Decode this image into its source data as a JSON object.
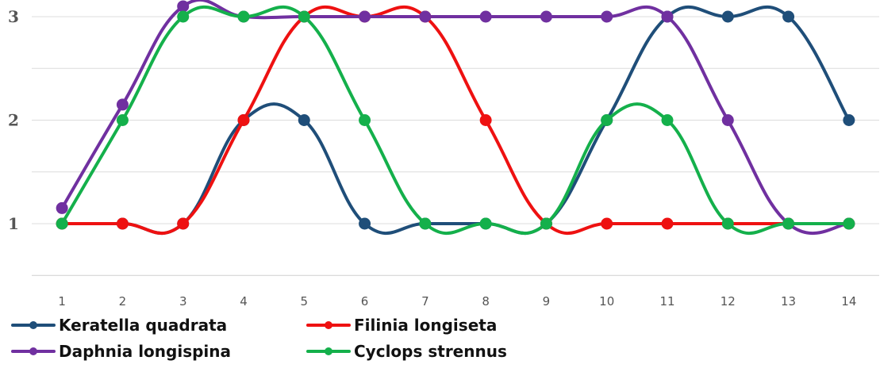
{
  "chart_data": {
    "type": "line",
    "title": "",
    "xlabel": "",
    "ylabel": "",
    "categories": [
      "1",
      "2",
      "3",
      "4",
      "5",
      "6",
      "7",
      "8",
      "9",
      "10",
      "11",
      "12",
      "13",
      "14"
    ],
    "y_ticks": [
      "1",
      "2",
      "3"
    ],
    "ylim": [
      0.5,
      3
    ],
    "grid": true,
    "smooth": true,
    "legend_position": "bottom",
    "series": [
      {
        "name": "Keratella quadrata",
        "color": "#1f4e79",
        "values": [
          1,
          1,
          1,
          2,
          2,
          1,
          1,
          1,
          1,
          2,
          3,
          3,
          3,
          2
        ]
      },
      {
        "name": "Filinia longiseta",
        "color": "#ee1111",
        "values": [
          1,
          1,
          1,
          2,
          3,
          3,
          3,
          2,
          1,
          1,
          1,
          1,
          1,
          1
        ]
      },
      {
        "name": "Daphnia longispina",
        "color": "#7030a0",
        "values": [
          1.15,
          2.15,
          3.1,
          3,
          3,
          3,
          3,
          3,
          3,
          3,
          3,
          2,
          1,
          1
        ]
      },
      {
        "name": "Cyclops strennus",
        "color": "#14b04b",
        "values": [
          1,
          2,
          3,
          3,
          3,
          2,
          1,
          1,
          1,
          2,
          2,
          1,
          1,
          1
        ]
      }
    ]
  }
}
